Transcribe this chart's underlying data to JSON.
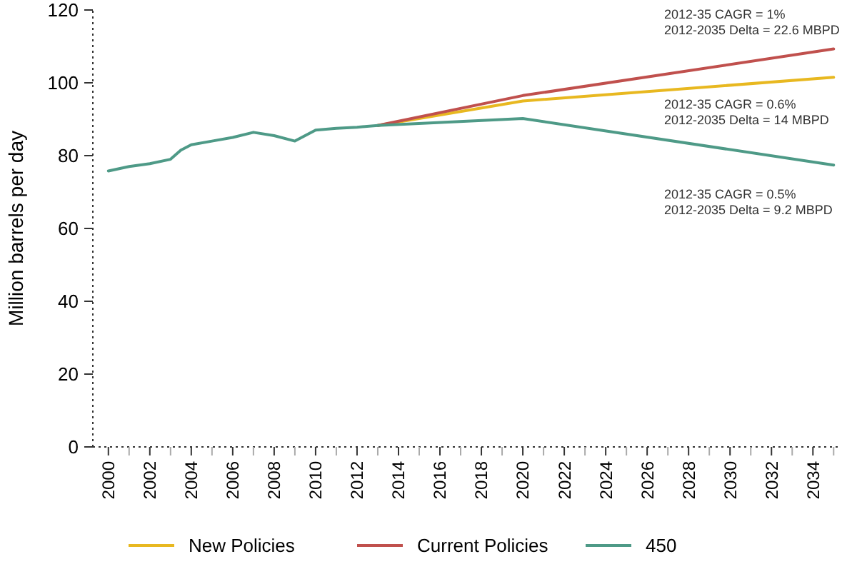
{
  "chart_data": {
    "type": "line",
    "ylabel": "Million barrels per day",
    "xlim": [
      1999.25,
      2035.3
    ],
    "ylim": [
      0,
      120
    ],
    "yticks": [
      0,
      20,
      40,
      60,
      80,
      100,
      120
    ],
    "xticks": [
      2000,
      {
        "value": 2001,
        "label": null
      },
      2002,
      {
        "value": 2003,
        "label": null
      },
      2004,
      {
        "value": 2005,
        "label": null
      },
      2006,
      {
        "value": 2007,
        "label": null
      },
      2008,
      {
        "value": 2009,
        "label": null
      },
      2010,
      {
        "value": 2011,
        "label": null
      },
      2012,
      {
        "value": 2013,
        "label": null
      },
      2014,
      {
        "value": 2015,
        "label": null
      },
      2016,
      {
        "value": 2017,
        "label": null
      },
      2018,
      {
        "value": 2019,
        "label": null
      },
      2020,
      {
        "value": 2021,
        "label": null
      },
      2022,
      {
        "value": 2023,
        "label": null
      },
      2024,
      {
        "value": 2025,
        "label": null
      },
      2026,
      {
        "value": 2027,
        "label": null
      },
      2028,
      {
        "value": 2029,
        "label": null
      },
      2030,
      {
        "value": 2031,
        "label": null
      },
      2032,
      {
        "value": 2033,
        "label": null
      },
      2034,
      {
        "value": 2035,
        "label": null
      }
    ],
    "series": [
      {
        "name": "New Policies",
        "color": "#e8b820",
        "x": [
          2013,
          2020,
          2035
        ],
        "values": [
          88.3,
          95,
          101.5
        ]
      },
      {
        "name": "Current Policies",
        "color": "#c0504d",
        "x": [
          2013,
          2020,
          2035
        ],
        "values": [
          88.3,
          96.5,
          109.3
        ]
      },
      {
        "name": "450",
        "color": "#4e9a87",
        "x": [
          2000,
          2001,
          2002,
          2003,
          2003.5,
          2004,
          2005,
          2006,
          2007,
          2008,
          2009,
          2010,
          2011,
          2012,
          2013,
          2020,
          2035
        ],
        "values": [
          75.8,
          77,
          77.8,
          79,
          81.5,
          83,
          84,
          85,
          86.4,
          85.5,
          84,
          87,
          87.5,
          87.8,
          88.3,
          90.2,
          77.4
        ]
      }
    ],
    "annotations": [
      "2012-35 CAGR = 1%",
      "2012-2035 Delta = 22.6 MBPD",
      "2012-35 CAGR = 0.6%",
      "2012-2035 Delta = 14 MBPD",
      "2012-35 CAGR = 0.5%",
      "2012-2035 Delta = 9.2 MBPD"
    ],
    "legend": "bottom",
    "marker": "none",
    "line_style": "solid",
    "grid": false
  }
}
